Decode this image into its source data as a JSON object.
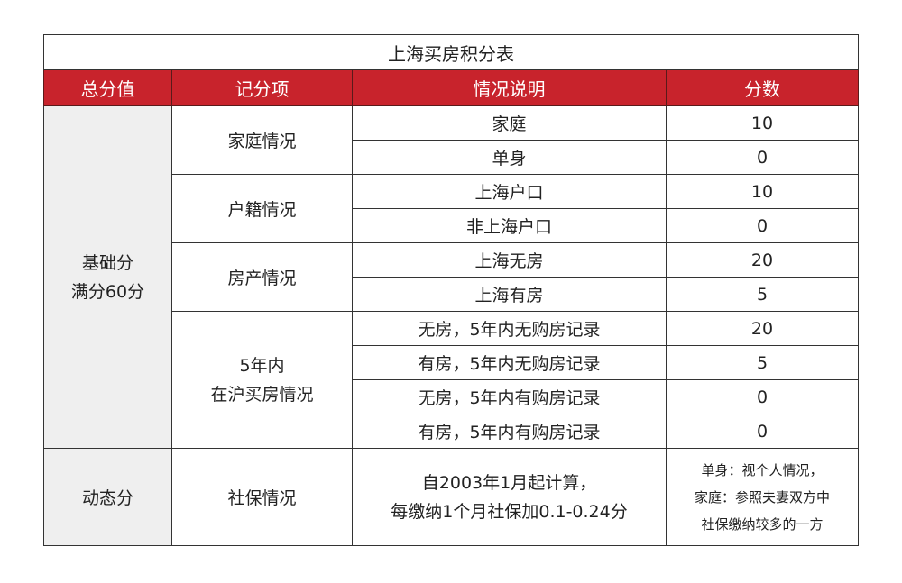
{
  "title": "上海买房积分表",
  "headers": [
    "总分值",
    "记分项",
    "情况说明",
    "分数"
  ],
  "base": {
    "total_line1": "基础分",
    "total_line2": "满分60分",
    "groups": [
      {
        "item": "家庭情况",
        "rows": [
          {
            "desc": "家庭",
            "score": "10"
          },
          {
            "desc": "单身",
            "score": "0"
          }
        ]
      },
      {
        "item": "户籍情况",
        "rows": [
          {
            "desc": "上海户口",
            "score": "10"
          },
          {
            "desc": "非上海户口",
            "score": "0"
          }
        ]
      },
      {
        "item": "房产情况",
        "rows": [
          {
            "desc": "上海无房",
            "score": "20"
          },
          {
            "desc": "上海有房",
            "score": "5"
          }
        ]
      },
      {
        "item_line1": "5年内",
        "item_line2": "在沪买房情况",
        "rows": [
          {
            "desc": "无房，5年内无购房记录",
            "score": "20"
          },
          {
            "desc": "有房，5年内无购房记录",
            "score": "5"
          },
          {
            "desc": "无房，5年内有购房记录",
            "score": "0"
          },
          {
            "desc": "有房，5年内有购房记录",
            "score": "0"
          }
        ]
      }
    ]
  },
  "dynamic": {
    "total": "动态分",
    "item": "社保情况",
    "desc_line1": "自2003年1月起计算，",
    "desc_line2": "每缴纳1个月社保加0.1-0.24分",
    "score_line1": "单身：视个人情况，",
    "score_line2": "家庭：参照夫妻双方中",
    "score_line3": "社保缴纳较多的一方"
  },
  "colors": {
    "header_bg": "#c8232c",
    "first_col_bg": "#efefef"
  }
}
